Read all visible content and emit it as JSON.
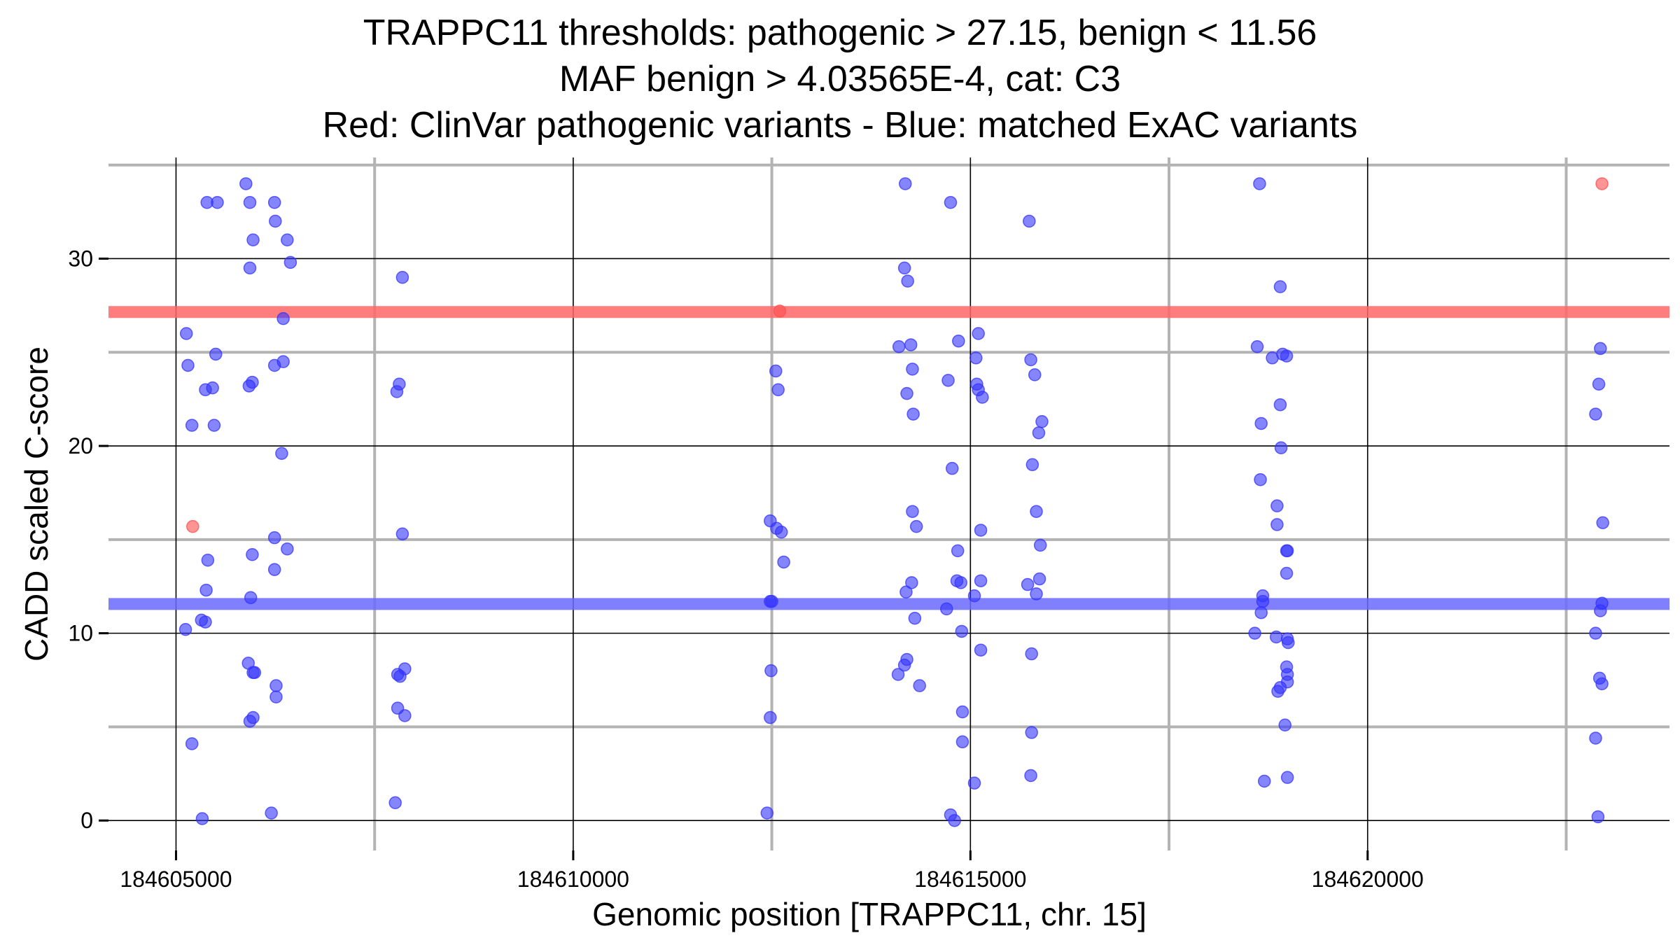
{
  "chart_data": {
    "type": "scatter",
    "title_lines": [
      "TRAPPC11 thresholds: pathogenic > 27.15, benign < 11.56",
      "MAF benign > 4.03565E-4, cat: C3",
      "Red: ClinVar pathogenic variants - Blue: matched ExAC variants"
    ],
    "xlabel": "Genomic position [TRAPPC11, chr. 15]",
    "ylabel": "CADD scaled C-score",
    "xlim": [
      184604150,
      184623800
    ],
    "ylim": [
      -1.6,
      35.4
    ],
    "x_ticks": [
      184605000,
      184610000,
      184615000,
      184620000
    ],
    "x_tick_labels": [
      "184605000",
      "184610000",
      "184615000",
      "184620000"
    ],
    "x_minor_ticks": [
      184607500,
      184612500,
      184617500,
      184622500
    ],
    "y_ticks": [
      0,
      10,
      20,
      30
    ],
    "y_tick_labels": [
      "0",
      "10",
      "20",
      "30"
    ],
    "y_minor_ticks": [
      5,
      15,
      25,
      35
    ],
    "thresholds": [
      {
        "name": "pathogenic",
        "value": 27.15,
        "color": "#ff6666"
      },
      {
        "name": "benign",
        "value": 11.56,
        "color": "#6a6aff"
      }
    ],
    "colors": {
      "pathogenic": "#ff4d4d",
      "benign": "#3333ff"
    },
    "series": [
      {
        "name": "ClinVar pathogenic variants",
        "color": "#ff4d4d",
        "points": [
          [
            184605210,
            15.7
          ],
          [
            184612600,
            27.2
          ],
          [
            184622950,
            34.0
          ]
        ]
      },
      {
        "name": "matched ExAC variants",
        "color": "#3333ff",
        "points": [
          [
            184605390,
            33.0
          ],
          [
            184605520,
            33.0
          ],
          [
            184605880,
            34.0
          ],
          [
            184605930,
            33.0
          ],
          [
            184606240,
            33.0
          ],
          [
            184606250,
            32.0
          ],
          [
            184605970,
            31.0
          ],
          [
            184606400,
            31.0
          ],
          [
            184605930,
            29.5
          ],
          [
            184606440,
            29.8
          ],
          [
            184606350,
            26.8
          ],
          [
            184605130,
            26.0
          ],
          [
            184605500,
            24.9
          ],
          [
            184605150,
            24.3
          ],
          [
            184606240,
            24.3
          ],
          [
            184606350,
            24.5
          ],
          [
            184605960,
            23.4
          ],
          [
            184605920,
            23.2
          ],
          [
            184605370,
            23.0
          ],
          [
            184605460,
            23.1
          ],
          [
            184605200,
            21.1
          ],
          [
            184605480,
            21.1
          ],
          [
            184606330,
            19.6
          ],
          [
            184606240,
            15.1
          ],
          [
            184606400,
            14.5
          ],
          [
            184605960,
            14.2
          ],
          [
            184605400,
            13.9
          ],
          [
            184606240,
            13.4
          ],
          [
            184605380,
            12.3
          ],
          [
            184605940,
            11.9
          ],
          [
            184605320,
            10.7
          ],
          [
            184605370,
            10.6
          ],
          [
            184605120,
            10.2
          ],
          [
            184605910,
            8.4
          ],
          [
            184605970,
            7.9
          ],
          [
            184605990,
            7.9
          ],
          [
            184606260,
            7.2
          ],
          [
            184606260,
            6.6
          ],
          [
            184605970,
            5.5
          ],
          [
            184605930,
            5.3
          ],
          [
            184605200,
            4.1
          ],
          [
            184606200,
            0.4
          ],
          [
            184605330,
            0.1
          ],
          [
            184607850,
            29.0
          ],
          [
            184607810,
            23.3
          ],
          [
            184607780,
            22.9
          ],
          [
            184607850,
            15.3
          ],
          [
            184607880,
            8.1
          ],
          [
            184607790,
            7.8
          ],
          [
            184607820,
            7.7
          ],
          [
            184607790,
            6.0
          ],
          [
            184607880,
            5.6
          ],
          [
            184607760,
            0.95
          ],
          [
            184612480,
            16.0
          ],
          [
            184612560,
            15.6
          ],
          [
            184612620,
            15.4
          ],
          [
            184612650,
            13.8
          ],
          [
            184612500,
            11.7
          ],
          [
            184612480,
            11.7
          ],
          [
            184612490,
            8.0
          ],
          [
            184612480,
            5.5
          ],
          [
            184612440,
            0.4
          ],
          [
            184612550,
            24.0
          ],
          [
            184612580,
            23.0
          ],
          [
            184614180,
            34.0
          ],
          [
            184614750,
            33.0
          ],
          [
            184614170,
            29.5
          ],
          [
            184614210,
            28.8
          ],
          [
            184614100,
            25.3
          ],
          [
            184614250,
            25.4
          ],
          [
            184614270,
            24.1
          ],
          [
            184614200,
            22.8
          ],
          [
            184614280,
            21.7
          ],
          [
            184614720,
            23.5
          ],
          [
            184614850,
            25.6
          ],
          [
            184615070,
            24.7
          ],
          [
            184615100,
            26.0
          ],
          [
            184615080,
            23.3
          ],
          [
            184615100,
            23.0
          ],
          [
            184615150,
            22.6
          ],
          [
            184614770,
            18.8
          ],
          [
            184614270,
            16.5
          ],
          [
            184614320,
            15.7
          ],
          [
            184615130,
            15.5
          ],
          [
            184614840,
            14.4
          ],
          [
            184614260,
            12.7
          ],
          [
            184614830,
            12.8
          ],
          [
            184614880,
            12.7
          ],
          [
            184615130,
            12.8
          ],
          [
            184614190,
            12.2
          ],
          [
            184615050,
            12.0
          ],
          [
            184614700,
            11.3
          ],
          [
            184614300,
            10.8
          ],
          [
            184614890,
            10.1
          ],
          [
            184615130,
            9.1
          ],
          [
            184614200,
            8.6
          ],
          [
            184614170,
            8.3
          ],
          [
            184614090,
            7.8
          ],
          [
            184614360,
            7.2
          ],
          [
            184614900,
            5.8
          ],
          [
            184614900,
            4.2
          ],
          [
            184615050,
            2.0
          ],
          [
            184614750,
            0.3
          ],
          [
            184614800,
            0.0
          ],
          [
            184615740,
            32.0
          ],
          [
            184615760,
            24.6
          ],
          [
            184615810,
            23.8
          ],
          [
            184615900,
            21.3
          ],
          [
            184615860,
            20.7
          ],
          [
            184615780,
            19.0
          ],
          [
            184615830,
            16.5
          ],
          [
            184615880,
            14.7
          ],
          [
            184615870,
            12.9
          ],
          [
            184615720,
            12.6
          ],
          [
            184615830,
            12.1
          ],
          [
            184615770,
            8.9
          ],
          [
            184615770,
            4.7
          ],
          [
            184615760,
            2.4
          ],
          [
            184618640,
            34.0
          ],
          [
            184618900,
            28.5
          ],
          [
            184618610,
            25.3
          ],
          [
            184618800,
            24.7
          ],
          [
            184618930,
            24.9
          ],
          [
            184618980,
            24.8
          ],
          [
            184618900,
            22.2
          ],
          [
            184618660,
            21.2
          ],
          [
            184618910,
            19.9
          ],
          [
            184618650,
            18.2
          ],
          [
            184618860,
            16.8
          ],
          [
            184618860,
            15.8
          ],
          [
            184618980,
            14.4
          ],
          [
            184618990,
            14.4
          ],
          [
            184618980,
            13.2
          ],
          [
            184618680,
            12.0
          ],
          [
            184618680,
            11.7
          ],
          [
            184618660,
            11.1
          ],
          [
            184618580,
            10.0
          ],
          [
            184618850,
            9.8
          ],
          [
            184618990,
            9.7
          ],
          [
            184619000,
            9.5
          ],
          [
            184618980,
            8.2
          ],
          [
            184618990,
            7.8
          ],
          [
            184618990,
            7.4
          ],
          [
            184618900,
            7.1
          ],
          [
            184618870,
            6.9
          ],
          [
            184618960,
            5.1
          ],
          [
            184618990,
            2.3
          ],
          [
            184618700,
            2.1
          ],
          [
            184622930,
            25.2
          ],
          [
            184622910,
            23.3
          ],
          [
            184622870,
            21.7
          ],
          [
            184622960,
            15.9
          ],
          [
            184622930,
            11.2
          ],
          [
            184622950,
            11.6
          ],
          [
            184622870,
            10.0
          ],
          [
            184622920,
            7.6
          ],
          [
            184622950,
            7.3
          ],
          [
            184622870,
            4.4
          ],
          [
            184622900,
            0.2
          ]
        ]
      }
    ]
  }
}
